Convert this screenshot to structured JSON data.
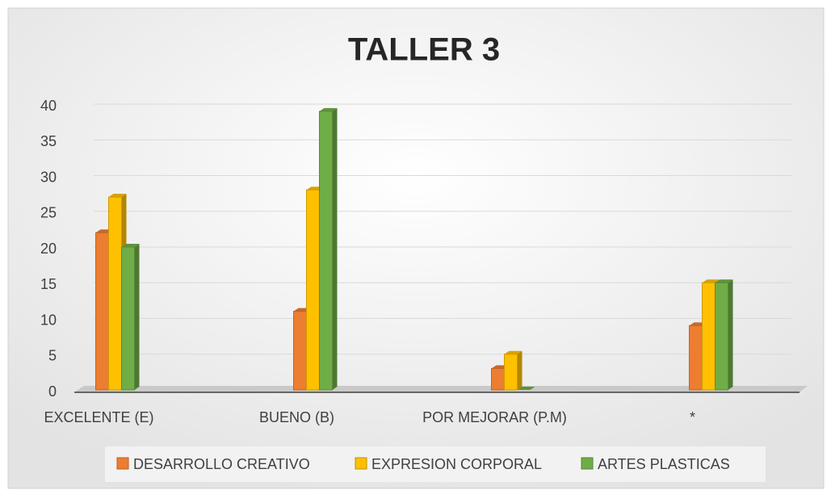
{
  "chart_data": {
    "type": "bar",
    "title": "TALLER 3",
    "categories": [
      "EXCELENTE (E)",
      "BUENO (B)",
      "POR MEJORAR (P.M)",
      "*"
    ],
    "series": [
      {
        "name": "DESARROLLO CREATIVO",
        "color": "#ed7d31",
        "values": [
          22,
          11,
          3,
          9
        ]
      },
      {
        "name": "EXPRESION CORPORAL",
        "color": "#ffc000",
        "values": [
          27,
          28,
          5,
          15
        ]
      },
      {
        "name": "ARTES PLASTICAS",
        "color": "#70ad47",
        "values": [
          20,
          39,
          0,
          15
        ]
      }
    ],
    "ylim": [
      0,
      40
    ],
    "yticks": [
      0,
      5,
      10,
      15,
      20,
      25,
      30,
      35,
      40
    ],
    "grid": true,
    "legend": "bottom"
  }
}
